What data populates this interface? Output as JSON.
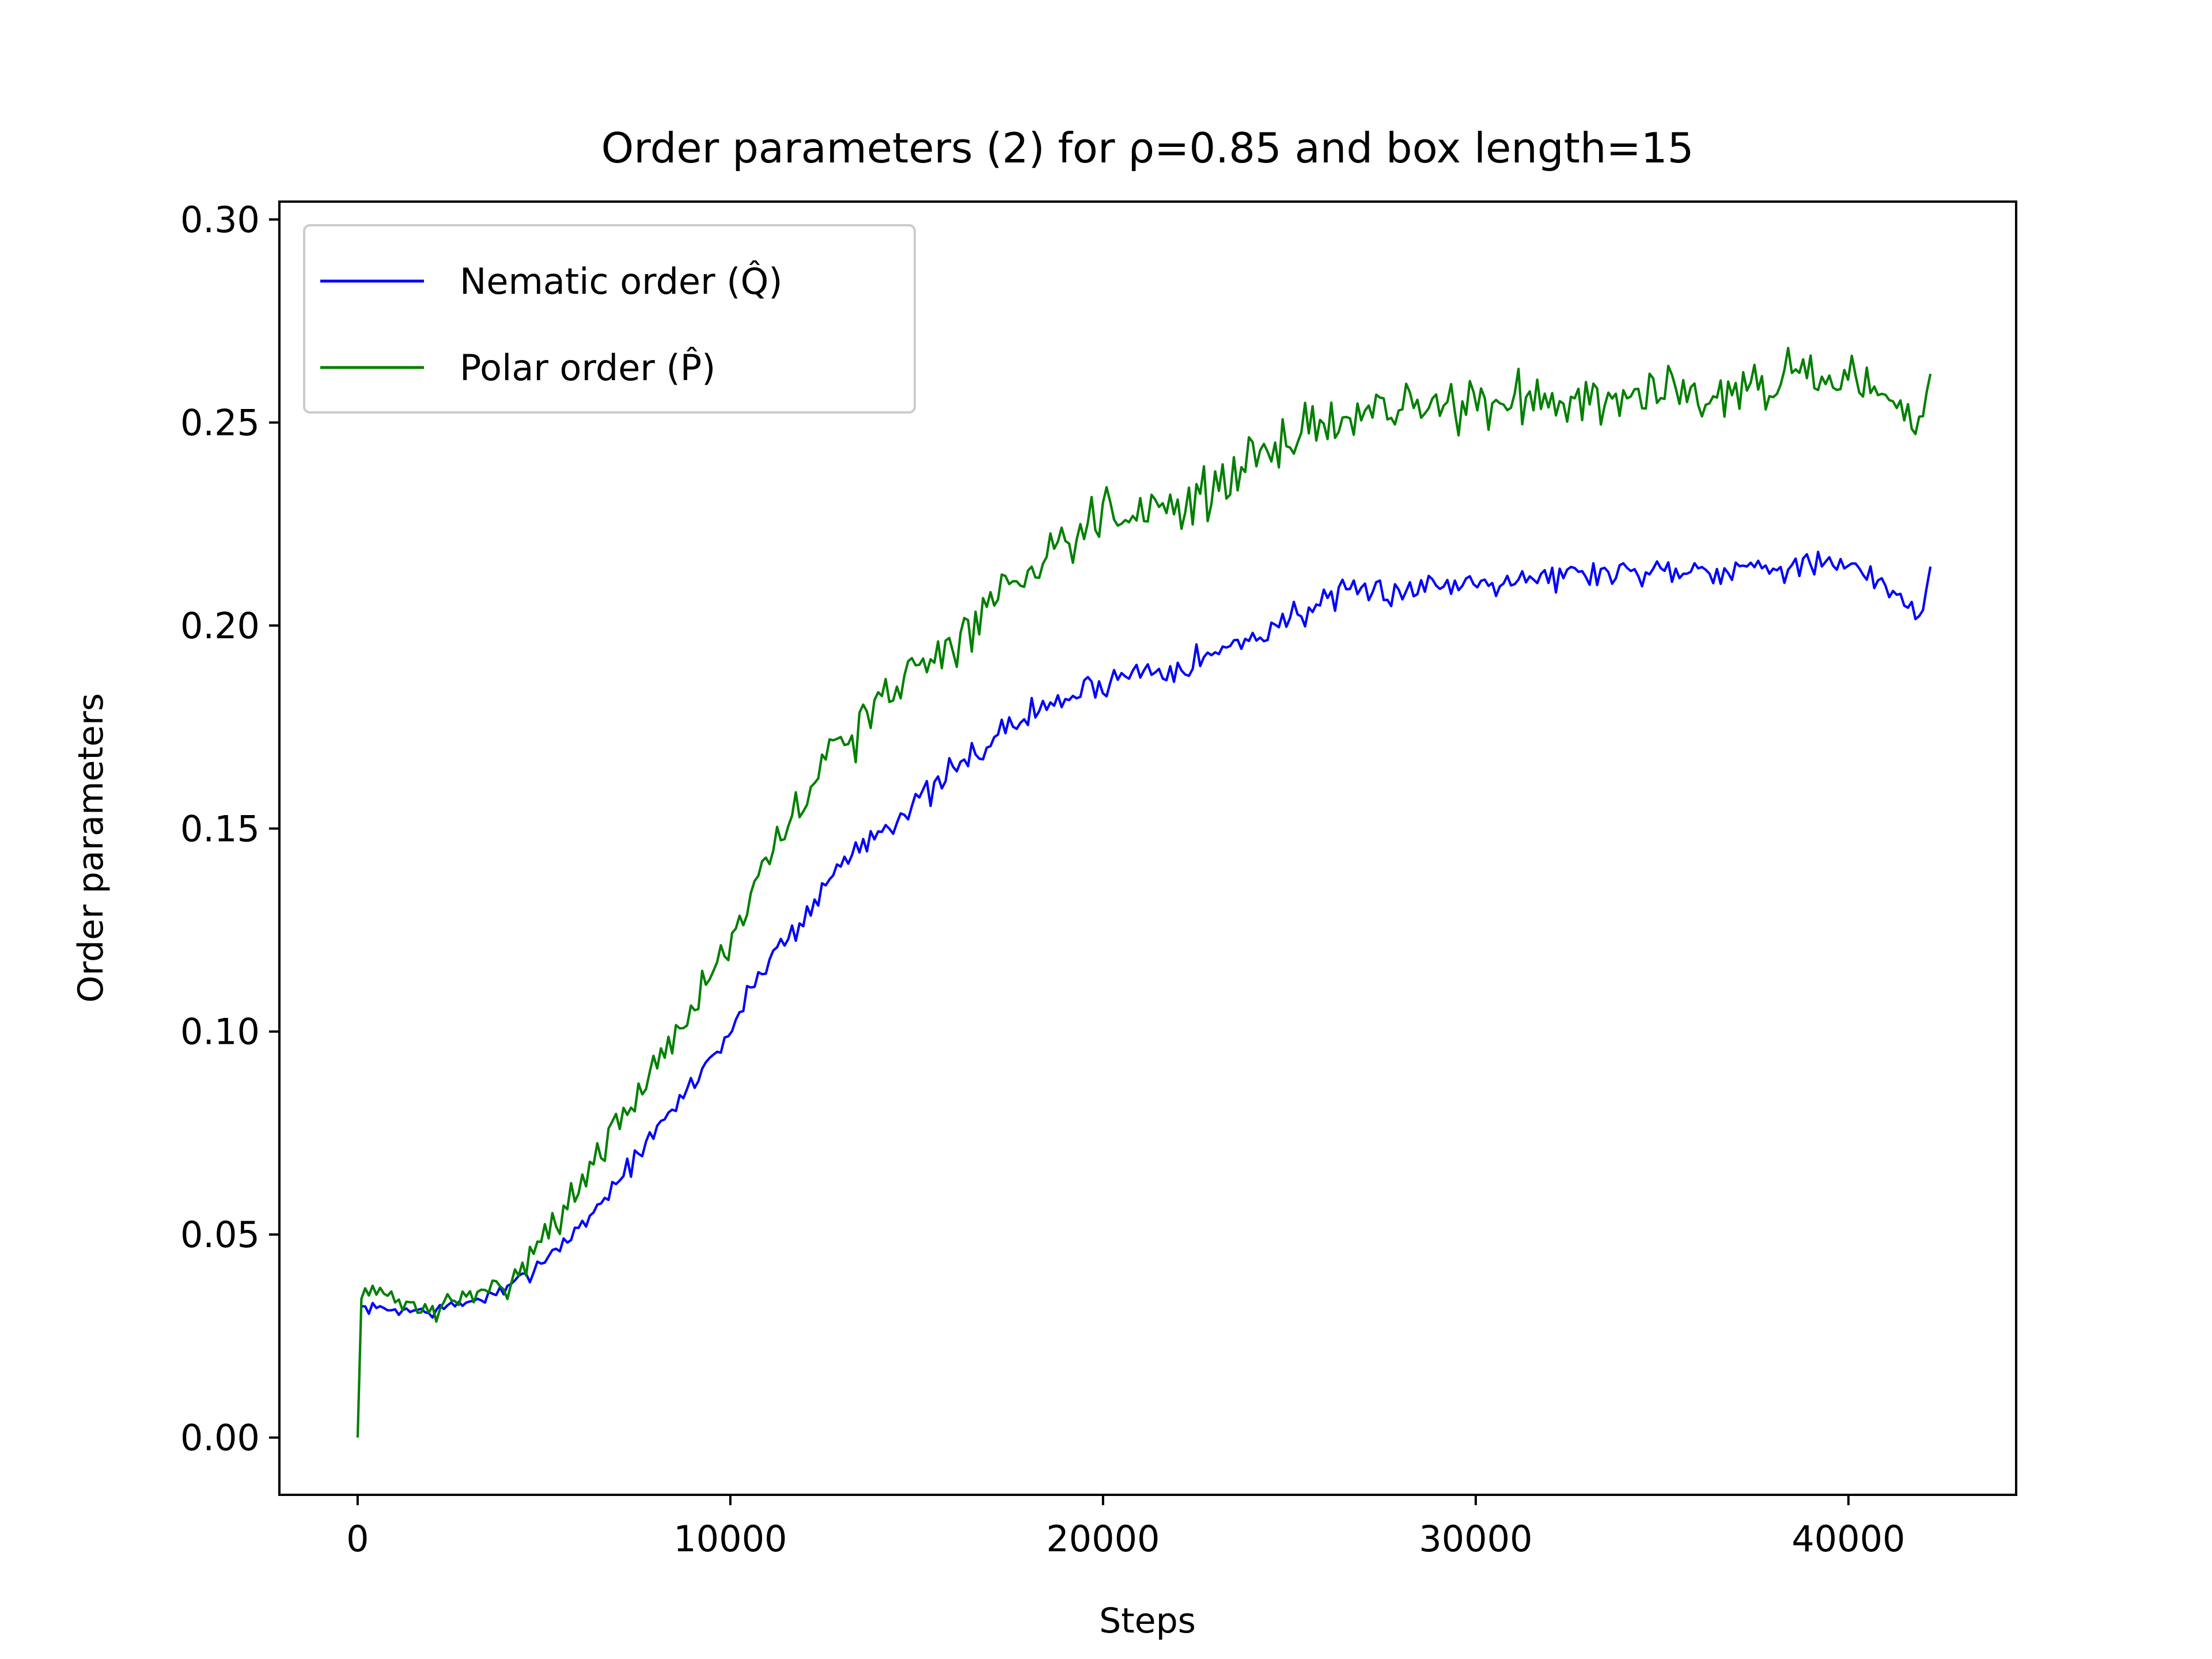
{
  "chart_data": {
    "type": "line",
    "title": "Order parameters (2) for ρ=0.85 and box length=15",
    "xlabel": "Steps",
    "ylabel": "Order parameters",
    "xlim": [
      -2100,
      44500
    ],
    "ylim": [
      -0.0141,
      0.3044
    ],
    "xticks": [
      0,
      10000,
      20000,
      30000,
      40000
    ],
    "xtick_labels": [
      "0",
      "10000",
      "20000",
      "30000",
      "40000"
    ],
    "yticks": [
      0.0,
      0.05,
      0.1,
      0.15,
      0.2,
      0.25,
      0.3
    ],
    "ytick_labels": [
      "0.00",
      "0.05",
      "0.10",
      "0.15",
      "0.20",
      "0.25",
      "0.30"
    ],
    "grid": false,
    "legend_position": "upper-left",
    "x": [
      0,
      2000,
      4000,
      6000,
      8000,
      10000,
      11000,
      12000,
      13000,
      14000,
      15000,
      16000,
      17000,
      18000,
      19000,
      20000,
      21000,
      22000,
      23000,
      24000,
      25000,
      26000,
      27000,
      28000,
      29000,
      30000,
      31000,
      32000,
      33000,
      34000,
      35000,
      36000,
      37000,
      38000,
      39000,
      40000,
      41000,
      42000,
      42200
    ],
    "series": [
      {
        "name": "Nematic order (Q̂)",
        "color": "#0000ff",
        "values": [
          0.032,
          0.031,
          0.036,
          0.052,
          0.075,
          0.1,
          0.118,
          0.128,
          0.142,
          0.15,
          0.156,
          0.164,
          0.172,
          0.178,
          0.182,
          0.186,
          0.189,
          0.19,
          0.193,
          0.197,
          0.202,
          0.206,
          0.208,
          0.209,
          0.21,
          0.211,
          0.212,
          0.212,
          0.213,
          0.213,
          0.214,
          0.214,
          0.214,
          0.215,
          0.215,
          0.214,
          0.21,
          0.203,
          0.214
        ]
      },
      {
        "name": "Polar order (P̂)",
        "color": "#008000",
        "values": [
          0.037,
          0.031,
          0.038,
          0.062,
          0.092,
          0.122,
          0.141,
          0.158,
          0.172,
          0.18,
          0.19,
          0.196,
          0.205,
          0.215,
          0.222,
          0.228,
          0.229,
          0.23,
          0.233,
          0.24,
          0.247,
          0.25,
          0.252,
          0.253,
          0.254,
          0.255,
          0.255,
          0.256,
          0.257,
          0.257,
          0.258,
          0.258,
          0.259,
          0.26,
          0.261,
          0.259,
          0.255,
          0.25,
          0.258
        ]
      }
    ]
  }
}
